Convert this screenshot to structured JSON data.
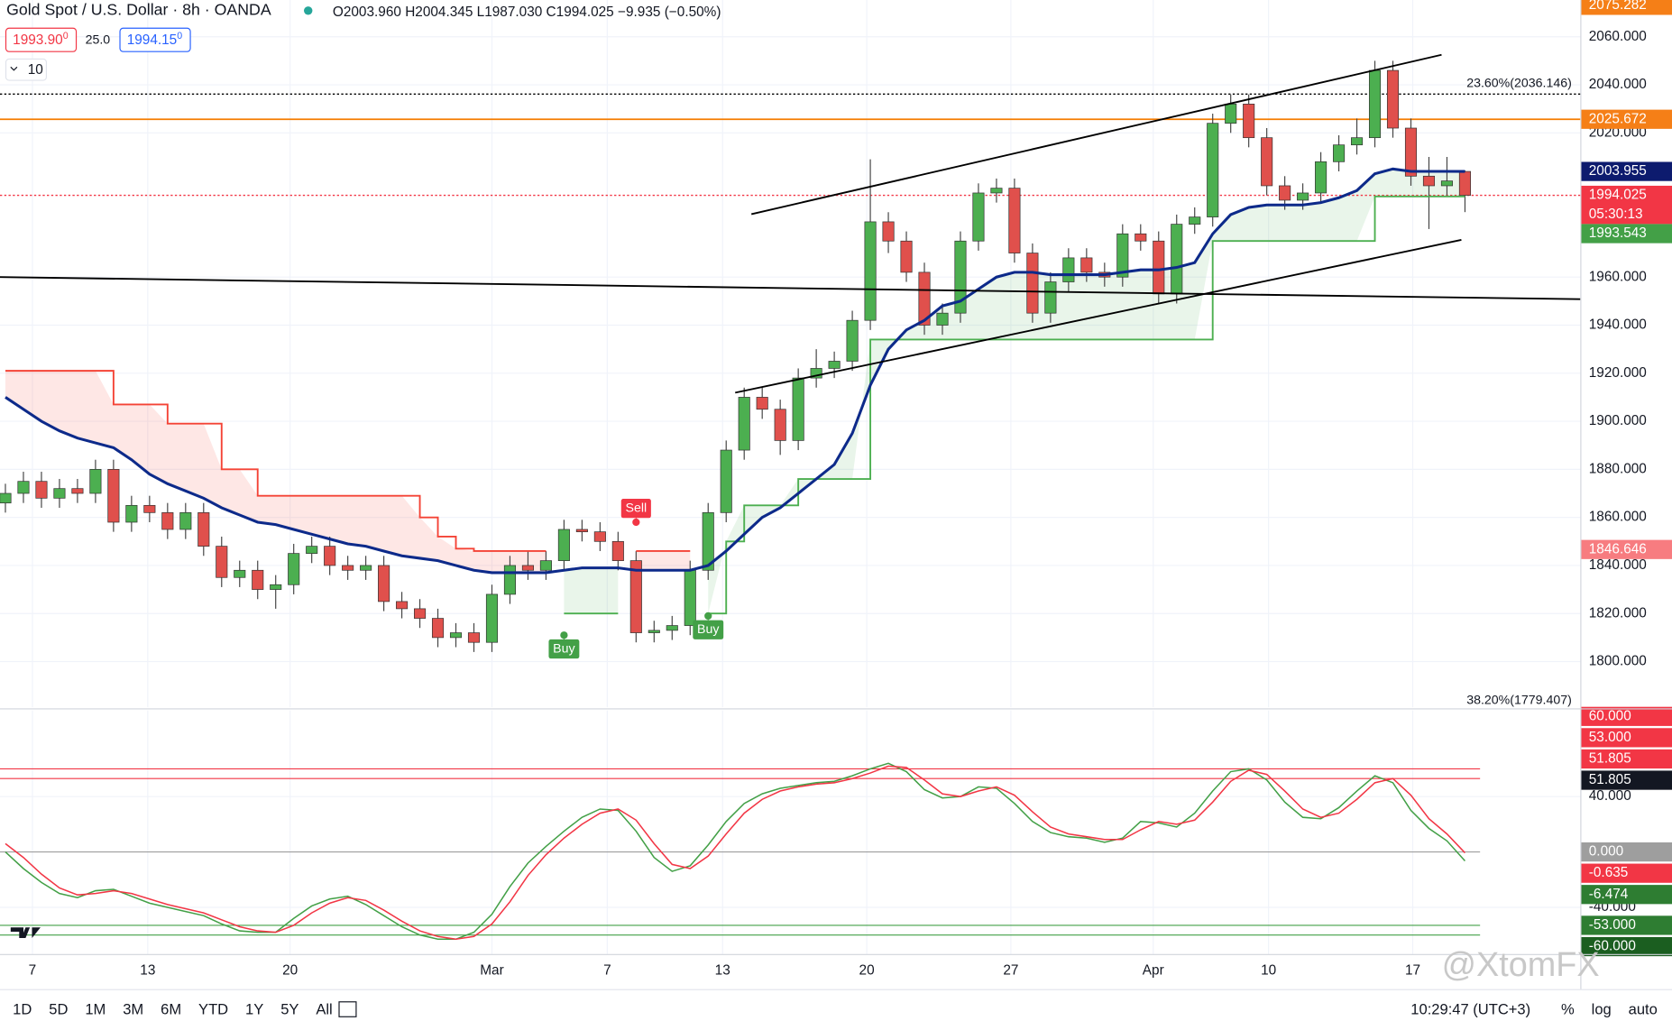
{
  "header": {
    "symbol": "Gold Spot / U.S. Dollar · 8h · OANDA",
    "ohlc": "O2003.960 H2004.345 L1987.030 C1994.025 −9.935 (−0.50%)",
    "bid": "1993.90",
    "bid_sup": "0",
    "spread": "25.0",
    "ask": "1994.15",
    "ask_sup": "0",
    "interval": "10"
  },
  "chart_data": [
    {
      "type": "candlestick",
      "xlim": [
        -0.3,
        87.4
      ],
      "xticks": [
        {
          "value": 1.5,
          "label": "7"
        },
        {
          "value": 7.9,
          "label": "13"
        },
        {
          "value": 15.8,
          "label": "20"
        },
        {
          "value": 27,
          "label": "Mar"
        },
        {
          "value": 33.4,
          "label": "7"
        },
        {
          "value": 39.8,
          "label": "13"
        },
        {
          "value": 47.8,
          "label": "20"
        },
        {
          "value": 55.8,
          "label": "27"
        },
        {
          "value": 63.7,
          "label": "Apr"
        },
        {
          "value": 70.1,
          "label": "10"
        },
        {
          "value": 78.1,
          "label": "17"
        }
      ],
      "ylim": [
        1781,
        2075.3
      ],
      "yticks": [
        {
          "value": 2060,
          "label": "2060.000"
        },
        {
          "value": 2040,
          "label": "2040.000"
        },
        {
          "value": 2020,
          "label": "2020.000"
        },
        {
          "value": 1960,
          "label": "1960.000"
        },
        {
          "value": 1940,
          "label": "1940.000"
        },
        {
          "value": 1920,
          "label": "1920.000"
        },
        {
          "value": 1900,
          "label": "1900.000"
        },
        {
          "value": 1880,
          "label": "1880.000"
        },
        {
          "value": 1860,
          "label": "1860.000"
        },
        {
          "value": 1840,
          "label": "1840.000"
        },
        {
          "value": 1820,
          "label": "1820.000"
        },
        {
          "value": 1800,
          "label": "1800.000"
        }
      ],
      "grid": true,
      "up_color": "#4caf50",
      "down_color": "#e0504c",
      "open": [
        1866,
        1870,
        1875,
        1868,
        1872,
        1870,
        1880,
        1858,
        1865,
        1862,
        1855,
        1862,
        1848,
        1835,
        1838,
        1830,
        1832,
        1845,
        1848,
        1840,
        1838,
        1840,
        1825,
        1822,
        1818,
        1810,
        1812,
        1808,
        1828,
        1840,
        1838,
        1842,
        1855,
        1854,
        1850,
        1842,
        1812,
        1813,
        1815,
        1838,
        1862,
        1888,
        1910,
        1905,
        1892,
        1918,
        1922,
        1925,
        1942,
        1983,
        1975,
        1962,
        1940,
        1945,
        1975,
        1995,
        1997,
        1970,
        1945,
        1958,
        1968,
        1962,
        1960,
        1978,
        1975,
        1953,
        1982,
        1985,
        2024,
        2032,
        2018,
        1998,
        1992,
        1995,
        2008,
        2015,
        2018,
        2046,
        2022,
        2002,
        1998,
        2003.96
      ],
      "high": [
        1874,
        1879,
        1879,
        1876,
        1876,
        1884,
        1884,
        1869,
        1869,
        1866,
        1866,
        1866,
        1852,
        1842,
        1842,
        1836,
        1849,
        1852,
        1852,
        1844,
        1844,
        1844,
        1829,
        1826,
        1822,
        1816,
        1816,
        1832,
        1844,
        1846,
        1846,
        1859,
        1859,
        1858,
        1854,
        1846,
        1817,
        1819,
        1842,
        1866,
        1892,
        1914,
        1914,
        1909,
        1922,
        1930,
        1929,
        1946,
        2009,
        1987,
        1979,
        1966,
        1949,
        1979,
        1999,
        2001,
        2001,
        1974,
        1962,
        1972,
        1972,
        1966,
        1982,
        1982,
        1979,
        1986,
        1989,
        2028,
        2036,
        2036,
        2022,
        2002,
        1999,
        2012,
        2019,
        2026,
        2050,
        2050,
        2026,
        2010,
        2010,
        2004.345
      ],
      "low": [
        1862,
        1866,
        1864,
        1864,
        1866,
        1866,
        1854,
        1854,
        1858,
        1851,
        1851,
        1844,
        1831,
        1831,
        1826,
        1822,
        1828,
        1841,
        1836,
        1834,
        1834,
        1821,
        1818,
        1814,
        1806,
        1806,
        1804,
        1804,
        1824,
        1834,
        1834,
        1838,
        1850,
        1846,
        1838,
        1808,
        1808,
        1809,
        1811,
        1834,
        1858,
        1884,
        1901,
        1886,
        1888,
        1914,
        1918,
        1921,
        1938,
        1970,
        1958,
        1936,
        1936,
        1941,
        1971,
        1991,
        1966,
        1941,
        1941,
        1954,
        1958,
        1956,
        1956,
        1971,
        1949,
        1949,
        1978,
        1981,
        2020,
        2014,
        1994,
        1988,
        1988,
        1991,
        2004,
        2011,
        2014,
        2018,
        1998,
        1980,
        1994,
        1987.03
      ],
      "close": [
        1870,
        1875,
        1868,
        1872,
        1870,
        1880,
        1858,
        1865,
        1862,
        1855,
        1862,
        1848,
        1835,
        1838,
        1830,
        1832,
        1845,
        1848,
        1840,
        1838,
        1840,
        1825,
        1822,
        1818,
        1810,
        1812,
        1808,
        1828,
        1840,
        1838,
        1842,
        1855,
        1854,
        1850,
        1842,
        1812,
        1813,
        1815,
        1838,
        1862,
        1888,
        1910,
        1905,
        1892,
        1918,
        1922,
        1925,
        1942,
        1983,
        1975,
        1962,
        1940,
        1945,
        1975,
        1995,
        1997,
        1970,
        1945,
        1958,
        1968,
        1962,
        1960,
        1978,
        1975,
        1953,
        1982,
        1985,
        2024,
        2032,
        2018,
        1998,
        1992,
        1995,
        2008,
        2015,
        2018,
        2046,
        2022,
        2002,
        1998,
        2000,
        1994.025
      ],
      "ema": {
        "color": "#0d2a8a",
        "values": [
          1910,
          1905,
          1900,
          1896,
          1893,
          1891,
          1889,
          1884,
          1878,
          1874,
          1871,
          1868,
          1864,
          1861,
          1858,
          1857,
          1855,
          1853,
          1851,
          1849,
          1848,
          1846,
          1844,
          1843,
          1842,
          1840,
          1838,
          1837,
          1837,
          1837,
          1837,
          1838,
          1839,
          1839,
          1839,
          1838,
          1838,
          1838,
          1838,
          1840,
          1846,
          1853,
          1860,
          1864,
          1870,
          1876,
          1882,
          1895,
          1915,
          1930,
          1938,
          1942,
          1948,
          1950,
          1955,
          1960,
          1962,
          1962,
          1961,
          1961,
          1961,
          1961,
          1962,
          1963,
          1963,
          1964,
          1966,
          1978,
          1986,
          1989,
          1990,
          1990,
          1990,
          1991,
          1993,
          1996,
          2003,
          2005,
          2004,
          2004,
          2004,
          2003.955
        ]
      },
      "supertrend": [
        {
          "color": "#f44336",
          "fill": "rgba(244,67,54,0.13)",
          "values": [
            1921,
            1921,
            1921,
            1921,
            1921,
            1921,
            1907,
            1907,
            1907,
            1899,
            1899,
            1899,
            1880,
            1880,
            1869,
            1869,
            1869,
            1869,
            1869,
            1869,
            1869,
            1869,
            1869,
            1860,
            1852,
            1847,
            1846,
            1846,
            1846,
            1846,
            1846,
            null,
            null,
            null,
            null,
            1846,
            1846,
            1846,
            1846,
            null,
            null,
            null,
            null,
            null,
            null,
            null,
            null,
            null,
            null,
            null,
            null,
            null,
            null,
            null,
            null,
            null,
            null,
            null,
            null,
            null,
            null,
            null,
            null,
            null,
            null,
            null,
            null,
            null,
            null,
            null,
            null,
            null,
            null,
            null,
            null,
            null,
            null,
            null,
            null,
            null,
            null,
            null
          ]
        },
        {
          "color": "#4caf50",
          "fill": "rgba(76,175,80,0.12)",
          "values": [
            null,
            null,
            null,
            null,
            null,
            null,
            null,
            null,
            null,
            null,
            null,
            null,
            null,
            null,
            null,
            null,
            null,
            null,
            null,
            null,
            null,
            null,
            null,
            null,
            null,
            null,
            null,
            null,
            null,
            null,
            null,
            1820,
            1820,
            1820,
            1820,
            null,
            null,
            null,
            null,
            1820,
            1850,
            1865,
            1865,
            1865,
            1876,
            1876,
            1876,
            1876,
            1934,
            1934,
            1934,
            1934,
            1934,
            1934,
            1934,
            1934,
            1934,
            1934,
            1934,
            1934,
            1934,
            1934,
            1934,
            1934,
            1934,
            1934,
            1934,
            1975,
            1975,
            1975,
            1975,
            1975,
            1975,
            1975,
            1975,
            1975,
            1993.543,
            1993.543,
            1993.543,
            1993.543,
            1993.543,
            1993.543
          ]
        }
      ],
      "signals": [
        {
          "x": 31,
          "value": 1811,
          "label": "Buy",
          "color": "#43a047",
          "side": "below"
        },
        {
          "x": 35,
          "value": 1858,
          "label": "Sell",
          "color": "#f23645",
          "side": "above"
        },
        {
          "x": 39,
          "value": 1819,
          "label": "Buy",
          "color": "#43a047",
          "side": "below"
        }
      ],
      "trendlines": [
        {
          "x": [
            41.4,
            79.7
          ],
          "y": [
            1986.2,
            2052.5
          ],
          "color": "#000000"
        },
        {
          "x": [
            40.5,
            80.8
          ],
          "y": [
            1911.9,
            1975.5
          ],
          "color": "#000000"
        },
        {
          "x": [
            -0.3,
            87.4
          ],
          "y": [
            1960,
            1950.8
          ],
          "color": "#000000"
        }
      ],
      "hlines": [
        {
          "value": 2036.146,
          "color": "#000000",
          "style": "dotted"
        },
        {
          "value": 2025.672,
          "color": "#f57c00",
          "style": "solid"
        },
        {
          "value": 1994.025,
          "color": "#f23645",
          "style": "dotted"
        }
      ],
      "fib_labels": [
        {
          "value": 2036.146,
          "label": "23.60%(2036.146)"
        },
        {
          "value": 1779.407,
          "label": "38.20%(1779.407)"
        }
      ],
      "badges": [
        {
          "value": 2075.282,
          "label": "2075.282",
          "color": "#f57f17"
        },
        {
          "value": 2025.672,
          "label": "2025.672",
          "color": "#f57f17"
        },
        {
          "value": 2003.955,
          "label": "2003.955",
          "color": "#0d1b6e"
        },
        {
          "value": 1994.025,
          "label": "1994.025",
          "countdown": "05:30:13",
          "color": "#f23645"
        },
        {
          "value": 1993.543,
          "label": "1993.543",
          "color": "#43a047"
        },
        {
          "value": 1846.646,
          "label": "1846.646",
          "color": "#f77c80"
        }
      ]
    },
    {
      "type": "line",
      "xlim": [
        -0.3,
        87.4
      ],
      "ylim": [
        -73.7,
        102.2
      ],
      "yticks": [
        {
          "value": 40,
          "label": "40.000"
        },
        {
          "value": -40,
          "label": "-40.000"
        }
      ],
      "series": [
        {
          "color": "#43a047",
          "values": [
            0,
            -12,
            -22,
            -30,
            -33,
            -28,
            -27,
            -32,
            -37,
            -40,
            -43,
            -46,
            -52,
            -57,
            -58,
            -58,
            -48,
            -39,
            -34,
            -32,
            -38,
            -46,
            -54,
            -60,
            -63,
            -63,
            -58,
            -45,
            -25,
            -8,
            4,
            15,
            25,
            31,
            30,
            15,
            -4,
            -14,
            -10,
            5,
            22,
            35,
            42,
            46,
            48,
            50,
            51,
            55,
            60,
            64,
            58,
            45,
            39,
            40,
            47,
            46,
            35,
            22,
            14,
            11,
            10,
            7,
            10,
            22,
            21,
            18,
            28,
            44,
            58,
            60,
            52,
            36,
            25,
            24,
            32,
            44,
            55,
            50,
            30,
            17,
            8,
            -6.474
          ]
        },
        {
          "color": "#f23645",
          "values": [
            6,
            -4,
            -16,
            -26,
            -31,
            -30,
            -28,
            -30,
            -34,
            -38,
            -41,
            -44,
            -49,
            -54,
            -57,
            -58,
            -53,
            -44,
            -37,
            -33,
            -35,
            -42,
            -50,
            -57,
            -61,
            -63,
            -61,
            -52,
            -36,
            -17,
            -2,
            10,
            20,
            28,
            31,
            23,
            6,
            -9,
            -12,
            -3,
            13,
            28,
            38,
            44,
            47,
            49,
            50,
            53,
            57,
            62,
            61,
            52,
            42,
            40,
            44,
            47,
            41,
            29,
            18,
            13,
            11,
            9,
            9,
            16,
            22,
            20,
            23,
            36,
            51,
            59,
            56,
            44,
            31,
            25,
            28,
            38,
            50,
            53,
            41,
            24,
            13,
            -0.635
          ]
        }
      ],
      "levels": [
        {
          "value": 60,
          "color": "#f23645"
        },
        {
          "value": 53,
          "color": "#f23645"
        },
        {
          "value": 0,
          "color": "#9e9e9e"
        },
        {
          "value": -53,
          "color": "#43a047"
        },
        {
          "value": -60,
          "color": "#43a047"
        }
      ],
      "badges": [
        {
          "value": 60,
          "label": "60.000",
          "color": "#f23645"
        },
        {
          "value": 53,
          "label": "53.000",
          "color": "#f23645"
        },
        {
          "value": 51.805,
          "label": "51.805",
          "color": "#f23645"
        },
        {
          "value": 51.805,
          "label": "51.805",
          "color": "#131722"
        },
        {
          "value": 0,
          "label": "0.000",
          "color": "#9e9e9e"
        },
        {
          "value": -0.635,
          "label": "-0.635",
          "color": "#f23645"
        },
        {
          "value": -6.474,
          "label": "-6.474",
          "color": "#2e7d32"
        },
        {
          "value": -53,
          "label": "-53.000",
          "color": "#2e7d32"
        },
        {
          "value": -60,
          "label": "-60.000",
          "color": "#1b5e20"
        }
      ]
    }
  ],
  "toolbar": {
    "ranges": [
      "1D",
      "5D",
      "1M",
      "3M",
      "6M",
      "YTD",
      "1Y",
      "5Y",
      "All"
    ],
    "clock": "10:29:47 (UTC+3)",
    "options": [
      "%",
      "log",
      "auto"
    ]
  },
  "watermark": "@XtomFX"
}
